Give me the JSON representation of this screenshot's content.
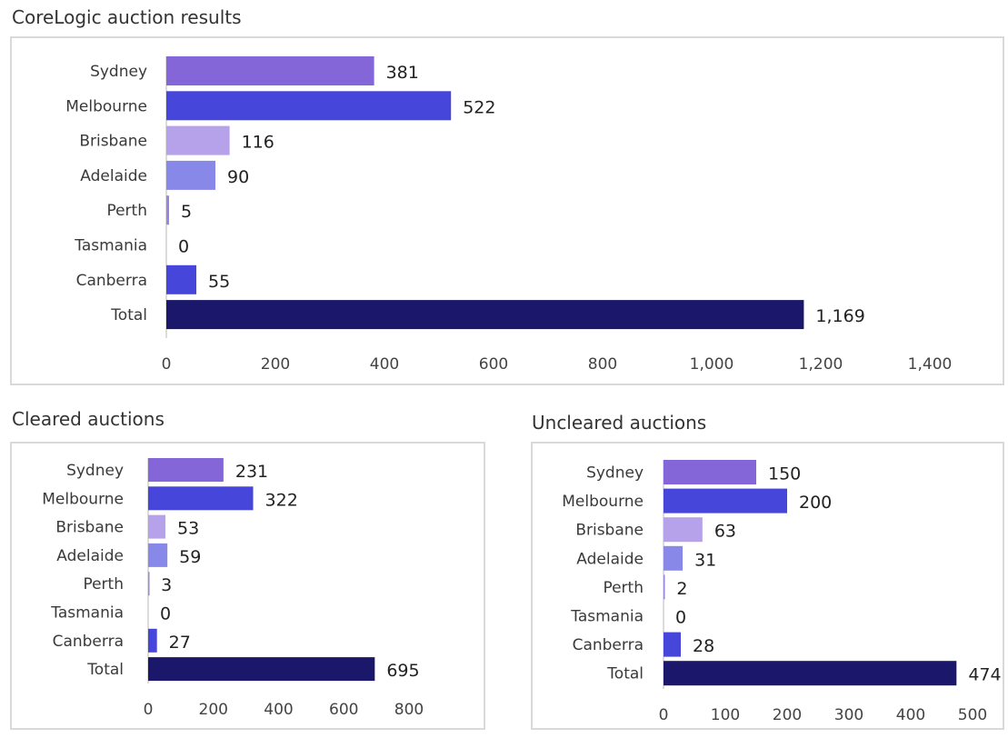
{
  "colors": {
    "Sydney": "#8466d8",
    "Melbourne": "#4746da",
    "Brisbane": "#b6a2ea",
    "Adelaide": "#8888e8",
    "Perth": "#9a86dc",
    "Tasmania": "#4746da",
    "Canberra": "#4746da",
    "Total": "#1b176a"
  },
  "chart_data": [
    {
      "type": "bar",
      "orientation": "horizontal",
      "title": "CoreLogic auction results",
      "categories": [
        "Sydney",
        "Melbourne",
        "Brisbane",
        "Adelaide",
        "Perth",
        "Tasmania",
        "Canberra",
        "Total"
      ],
      "values": [
        381,
        522,
        116,
        90,
        5,
        0,
        55,
        1169
      ],
      "value_labels": [
        "381",
        "522",
        "116",
        "90",
        "5",
        "0",
        "55",
        "1,169"
      ],
      "xlim": [
        0,
        1400
      ],
      "ticks": [
        0,
        200,
        400,
        600,
        800,
        1000,
        1200,
        1400
      ],
      "tick_labels": [
        "0",
        "200",
        "400",
        "600",
        "800",
        "1,000",
        "1,200",
        "1,400"
      ],
      "grid": false
    },
    {
      "type": "bar",
      "orientation": "horizontal",
      "title": "Cleared auctions",
      "categories": [
        "Sydney",
        "Melbourne",
        "Brisbane",
        "Adelaide",
        "Perth",
        "Tasmania",
        "Canberra",
        "Total"
      ],
      "values": [
        231,
        322,
        53,
        59,
        3,
        0,
        27,
        695
      ],
      "value_labels": [
        "231",
        "322",
        "53",
        "59",
        "3",
        "0",
        "27",
        "695"
      ],
      "xlim": [
        0,
        800
      ],
      "ticks": [
        0,
        200,
        400,
        600,
        800
      ],
      "tick_labels": [
        "0",
        "200",
        "400",
        "600",
        "800"
      ],
      "grid": false
    },
    {
      "type": "bar",
      "orientation": "horizontal",
      "title": "Uncleared auctions",
      "categories": [
        "Sydney",
        "Melbourne",
        "Brisbane",
        "Adelaide",
        "Perth",
        "Tasmania",
        "Canberra",
        "Total"
      ],
      "values": [
        150,
        200,
        63,
        31,
        2,
        0,
        28,
        474
      ],
      "value_labels": [
        "150",
        "200",
        "63",
        "31",
        "2",
        "0",
        "28",
        "474"
      ],
      "xlim": [
        0,
        500
      ],
      "ticks": [
        0,
        100,
        200,
        300,
        400,
        500
      ],
      "tick_labels": [
        "0",
        "100",
        "200",
        "300",
        "400",
        "500"
      ],
      "grid": false
    }
  ]
}
